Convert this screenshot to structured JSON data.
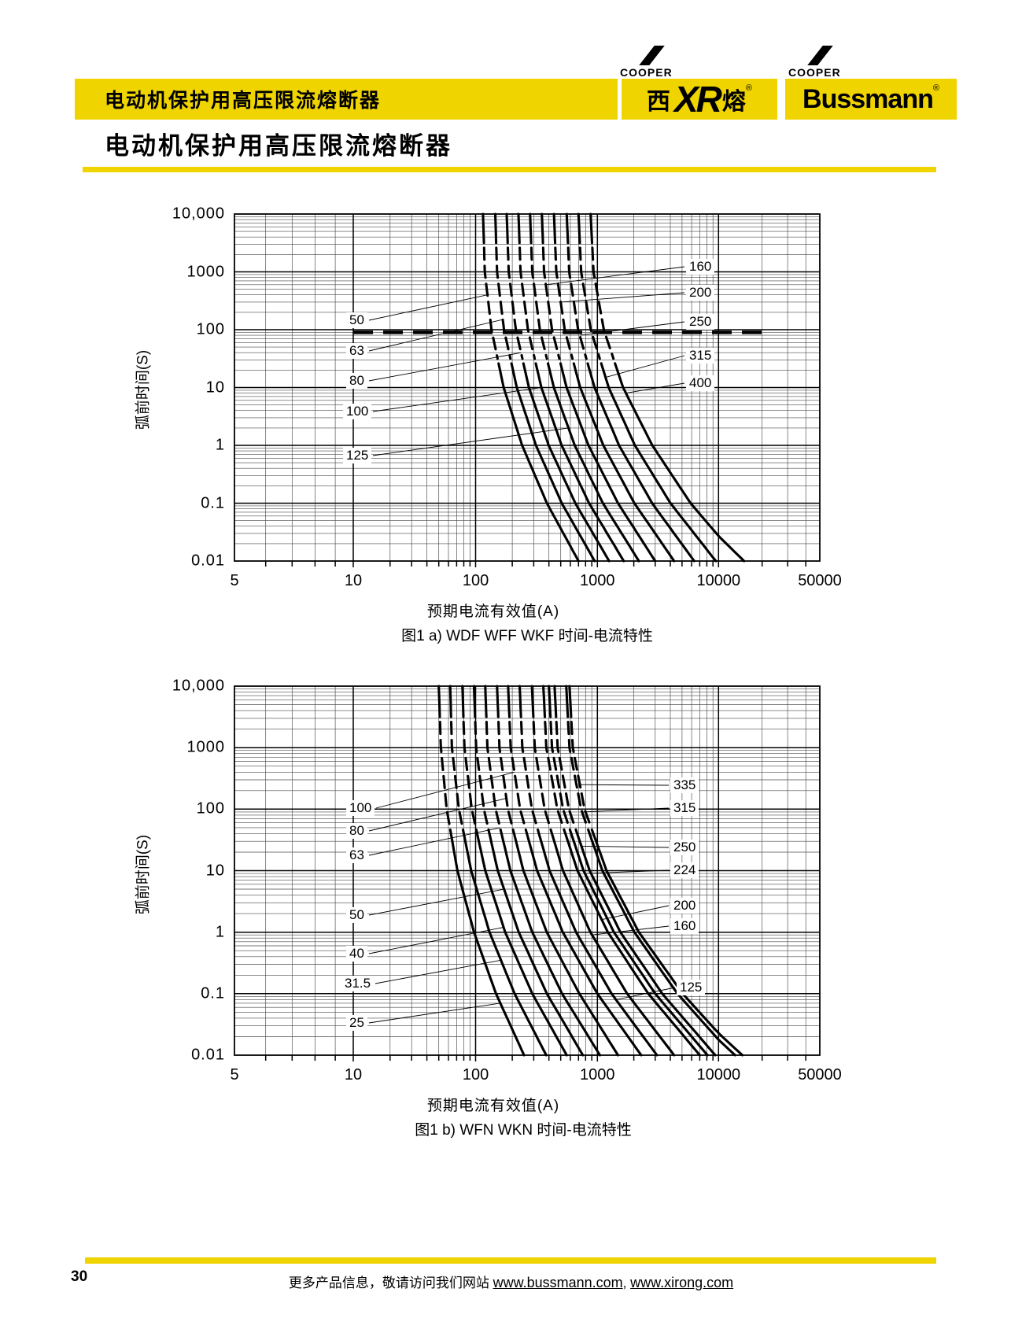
{
  "header": {
    "banner_title": "电动机保护用高压限流熔断器",
    "page_title": "电动机保护用高压限流熔断器",
    "brand_yellow": "#EFD400",
    "logo_xirong": {
      "cooper": "COOPER",
      "char_left": "西",
      "mark": "XR",
      "char_right": "熔",
      "reg": "®"
    },
    "logo_bussmann": {
      "cooper": "COOPER",
      "name": "Bussmann",
      "reg": "®"
    }
  },
  "footer": {
    "page_number": "30",
    "text": "更多产品信息，敬请访问我们网站",
    "link1": "www.bussmann.com",
    "separator": ", ",
    "link2": "www.xirong.com"
  },
  "chart_data": [
    {
      "type": "line",
      "title": "图1 a) WDF WFF WKF 时间-电流特性",
      "xlabel": "预期电流有效值(A)",
      "ylabel": "弧前时间(S)",
      "xscale": "log",
      "yscale": "log",
      "xlim": [
        5,
        50000
      ],
      "ylim": [
        0.01,
        10000
      ],
      "grid": true,
      "x_tick_values": [
        5,
        10,
        100,
        1000,
        10000,
        50000
      ],
      "x_tick_labels": [
        "5",
        "10",
        "100",
        "1000",
        "10000",
        "50000"
      ],
      "y_tick_values": [
        10000,
        1000,
        100,
        10,
        1,
        0.1,
        0.01
      ],
      "y_tick_labels": [
        "10,000",
        "1000",
        "100",
        "10",
        "1",
        "0.1",
        "0.01"
      ],
      "sample_times_s": [
        10000,
        1000,
        100,
        10,
        1,
        0.1,
        0.01
      ],
      "series": [
        {
          "name": "50",
          "currents_A": [
            115,
            119,
            135,
            170,
            241,
            385,
            700
          ]
        },
        {
          "name": "63",
          "currents_A": [
            145,
            150,
            171,
            218,
            313,
            510,
            950
          ]
        },
        {
          "name": "80",
          "currents_A": [
            180,
            187,
            214,
            274,
            398,
            659,
            1250
          ]
        },
        {
          "name": "100",
          "currents_A": [
            225,
            234,
            269,
            347,
            509,
            854,
            1650
          ]
        },
        {
          "name": "125",
          "currents_A": [
            280,
            292,
            337,
            439,
            652,
            1110,
            2200
          ]
        },
        {
          "name": "160",
          "currents_A": [
            350,
            365,
            424,
            559,
            845,
            1480,
            3000
          ]
        },
        {
          "name": "200",
          "currents_A": [
            440,
            460,
            539,
            723,
            1120,
            2020,
            4300
          ]
        },
        {
          "name": "250",
          "currents_A": [
            560,
            587,
            695,
            948,
            1510,
            2830,
            6300
          ]
        },
        {
          "name": "315",
          "currents_A": [
            700,
            736,
            883,
            1240,
            2040,
            4010,
            9500
          ]
        },
        {
          "name": "400",
          "currents_A": [
            880,
            930,
            1130,
            1630,
            2840,
            5880,
            15000
          ]
        }
      ],
      "reference_line": {
        "style": "dashed-horizontal",
        "time_s": 90,
        "from_A": 10,
        "to_A": 20000
      }
    },
    {
      "type": "line",
      "title": "图1 b) WFN WKN 时间-电流特性",
      "xlabel": "预期电流有效值(A)",
      "ylabel": "弧前时间(S)",
      "xscale": "log",
      "yscale": "log",
      "xlim": [
        5,
        50000
      ],
      "ylim": [
        0.01,
        10000
      ],
      "grid": true,
      "x_tick_values": [
        5,
        10,
        100,
        1000,
        10000,
        50000
      ],
      "x_tick_labels": [
        "5",
        "10",
        "100",
        "1000",
        "10000",
        "50000"
      ],
      "y_tick_values": [
        10000,
        1000,
        100,
        10,
        1,
        0.1,
        0.01
      ],
      "y_tick_labels": [
        "10,000",
        "1000",
        "100",
        "10",
        "1",
        "0.1",
        "0.01"
      ],
      "sample_times_s": [
        10000,
        1000,
        100,
        10,
        1,
        0.1,
        0.01
      ],
      "series": [
        {
          "name": "25",
          "currents_A": [
            50,
            52,
            58,
            71,
            97,
            147,
            250
          ]
        },
        {
          "name": "31.5",
          "currents_A": [
            62,
            64,
            73,
            92,
            130,
            209,
            380
          ]
        },
        {
          "name": "40",
          "currents_A": [
            78,
            81,
            93,
            120,
            175,
            292,
            560
          ]
        },
        {
          "name": "50",
          "currents_A": [
            97,
            101,
            117,
            152,
            226,
            385,
            760
          ]
        },
        {
          "name": "63",
          "currents_A": [
            120,
            125,
            146,
            193,
            292,
            513,
            1050
          ]
        },
        {
          "name": "80",
          "currents_A": [
            150,
            157,
            184,
            247,
            384,
            711,
            1480
          ]
        },
        {
          "name": "100",
          "currents_A": [
            185,
            194,
            232,
            320,
            520,
            1000,
            2300
          ]
        },
        {
          "name": "125",
          "currents_A": [
            230,
            242,
            290,
            405,
            668,
            1310,
            3100
          ]
        },
        {
          "name": "160",
          "currents_A": [
            290,
            306,
            369,
            522,
            876,
            1760,
            4300
          ]
        },
        {
          "name": "200",
          "currents_A": [
            360,
            381,
            469,
            687,
            1220,
            2630,
            7000
          ]
        },
        {
          "name": "224",
          "currents_A": [
            400,
            424,
            523,
            770,
            1370,
            3000,
            8100
          ]
        },
        {
          "name": "250",
          "currents_A": [
            445,
            472,
            584,
            864,
            1550,
            3430,
            9400
          ]
        },
        {
          "name": "315",
          "currents_A": [
            555,
            590,
            735,
            1100,
            2020,
            4580,
            13000
          ]
        },
        {
          "name": "335",
          "currents_A": [
            590,
            628,
            785,
            1190,
            2200,
            5060,
            14600
          ]
        }
      ]
    }
  ]
}
